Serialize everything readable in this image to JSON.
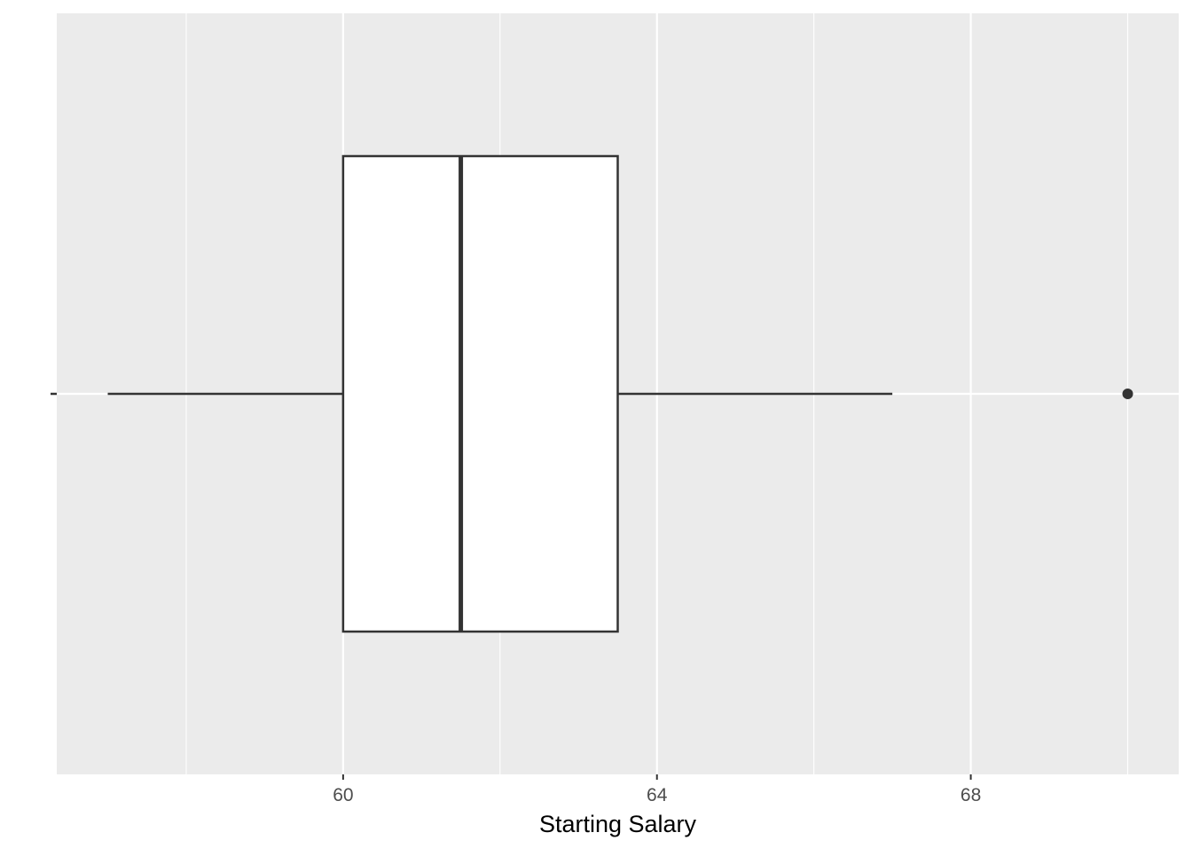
{
  "chart_data": {
    "type": "boxplot",
    "title": "",
    "xlabel": "Starting Salary",
    "ylabel": "",
    "orientation": "horizontal",
    "xlim": [
      56.35,
      70.65
    ],
    "x_ticks": [
      {
        "value": 60,
        "label": "60"
      },
      {
        "value": 64,
        "label": "64"
      },
      {
        "value": 68,
        "label": "68"
      }
    ],
    "x_minor_gridlines": [
      58,
      62,
      66,
      70
    ],
    "grid": true,
    "legend": "none",
    "box": {
      "lower_whisker": 57.0,
      "q1": 60.0,
      "median": 61.5,
      "q3": 63.5,
      "upper_whisker": 67.0,
      "outliers": [
        70.0
      ]
    },
    "colors": {
      "panel_background": "#EBEBEB",
      "gridline": "#FFFFFF",
      "box_fill": "#FFFFFF",
      "box_line": "#333333",
      "tick_label": "#4D4D4D",
      "axis_title": "#000000"
    }
  }
}
